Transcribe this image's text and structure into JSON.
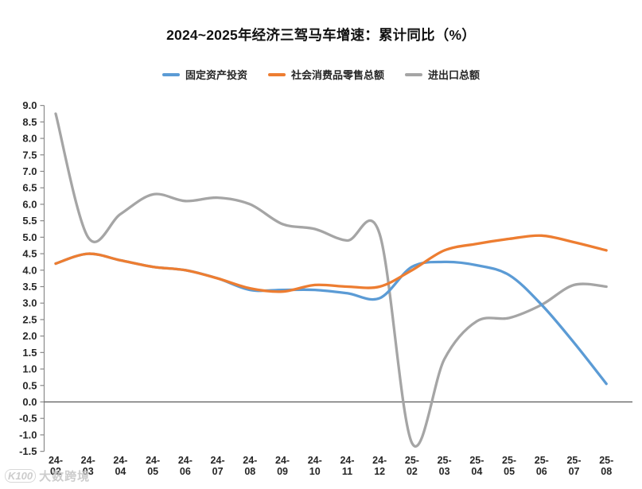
{
  "title": "2024~2025年经济三驾马车增速：累计同比（%）",
  "legend": {
    "items": [
      {
        "label": "固定资产投资",
        "color": "#5B9BD5"
      },
      {
        "label": "社会消费品零售总额",
        "color": "#ED7D31"
      },
      {
        "label": "进出口总额",
        "color": "#A5A5A5"
      }
    ]
  },
  "watermark": {
    "logo": "K100",
    "text": "大数跨境"
  },
  "chart_data": {
    "type": "line",
    "smoothed": true,
    "title": "2024~2025年经济三驾马车增速：累计同比（%）",
    "xlabel": "",
    "ylabel": "",
    "categories": [
      "24-02",
      "24-03",
      "24-04",
      "24-05",
      "24-06",
      "24-07",
      "24-08",
      "24-09",
      "24-10",
      "24-11",
      "24-12",
      "25-02",
      "25-03",
      "25-04",
      "25-05",
      "25-06",
      "25-07",
      "25-08"
    ],
    "series": [
      {
        "name": "固定资产投资",
        "color": "#5B9BD5",
        "values": [
          4.2,
          4.5,
          4.3,
          4.1,
          4.0,
          3.75,
          3.4,
          3.4,
          3.4,
          3.3,
          3.15,
          4.1,
          4.25,
          4.15,
          3.85,
          2.95,
          1.8,
          0.55
        ]
      },
      {
        "name": "社会消费品零售总额",
        "color": "#ED7D31",
        "values": [
          4.2,
          4.5,
          4.3,
          4.1,
          4.0,
          3.75,
          3.45,
          3.35,
          3.55,
          3.5,
          3.5,
          4.0,
          4.6,
          4.8,
          4.95,
          5.05,
          4.85,
          4.6
        ]
      },
      {
        "name": "进出口总额",
        "color": "#A5A5A5",
        "values": [
          8.75,
          5.0,
          5.7,
          6.3,
          6.1,
          6.2,
          6.0,
          5.4,
          5.25,
          4.9,
          5.1,
          -1.25,
          1.3,
          2.45,
          2.55,
          2.95,
          3.55,
          3.5
        ]
      }
    ],
    "ylim": [
      -1.5,
      9.0
    ],
    "ytick_step": 0.5,
    "ytick_labels": [
      "9.0",
      "8.5",
      "8.0",
      "7.5",
      "7.0",
      "6.5",
      "6.0",
      "5.5",
      "5.0",
      "4.5",
      "4.0",
      "3.5",
      "3.0",
      "2.5",
      "2.0",
      "1.5",
      "1.0",
      "0.5",
      "0.0",
      "-0.5",
      "-1.0",
      "-1.5"
    ],
    "grid": false,
    "legend_position": "top",
    "axis_color": "#8a8a8a",
    "zero_line_color": "#595959",
    "label_color": "#262626",
    "draw_order": [
      2,
      0,
      1
    ]
  }
}
